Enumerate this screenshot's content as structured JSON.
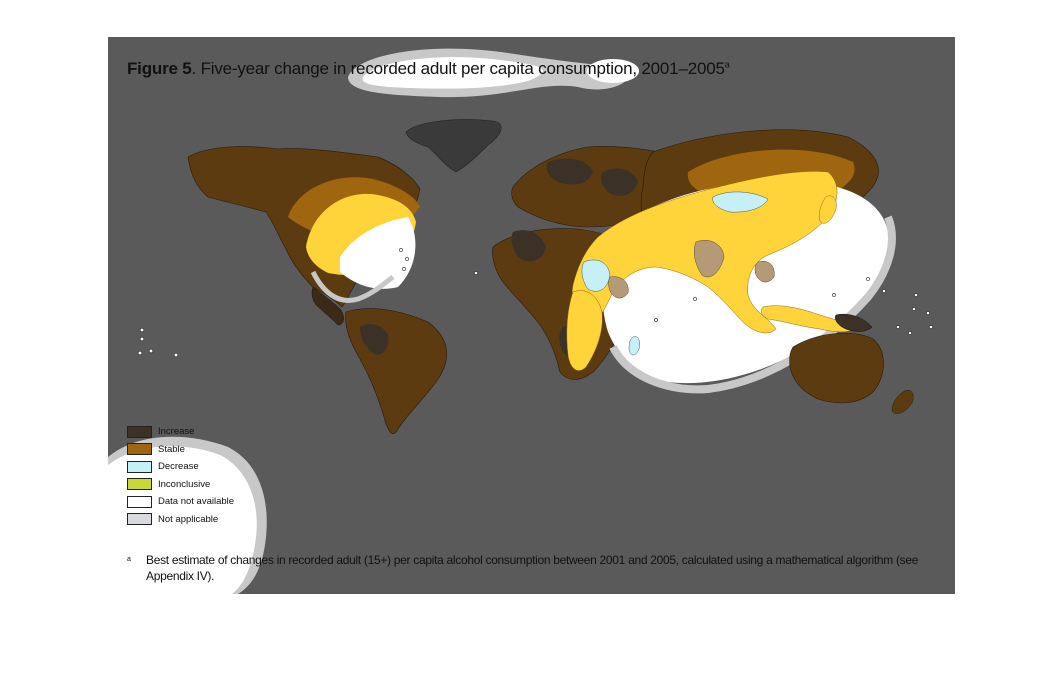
{
  "title": {
    "figure_label": "Figure 5",
    "text": ". Five-year change in recorded adult per capita consumption, 2001–2005",
    "superscript": "a"
  },
  "legend": [
    {
      "label": "Increase",
      "color": "#3b3126"
    },
    {
      "label": "Stable",
      "color": "#a0650f"
    },
    {
      "label": "Decrease",
      "color": "#c6f0f7"
    },
    {
      "label": "Inconclusive",
      "color": "#c7d932"
    },
    {
      "label": "Data not available",
      "color": "#ffffff"
    },
    {
      "label": "Not applicable",
      "color": "#d9dadd"
    }
  ],
  "footnote": {
    "marker": "a",
    "text": "Best estimate of changes in recorded adult (15+) per capita alcohol consumption between 2001 and 2005, calculated using a mathematical algorithm (see Appendix IV)."
  },
  "colors": {
    "background": "#5a5a5a",
    "increase": "#3b3126",
    "stable": "#5c3b10",
    "stable_highlight": "#a0650f",
    "yellow": "#ffd33a",
    "decrease": "#c6f0f7",
    "not_available": "#ffffff",
    "not_applicable": "#d9dadd",
    "tan": "#b59a78"
  }
}
